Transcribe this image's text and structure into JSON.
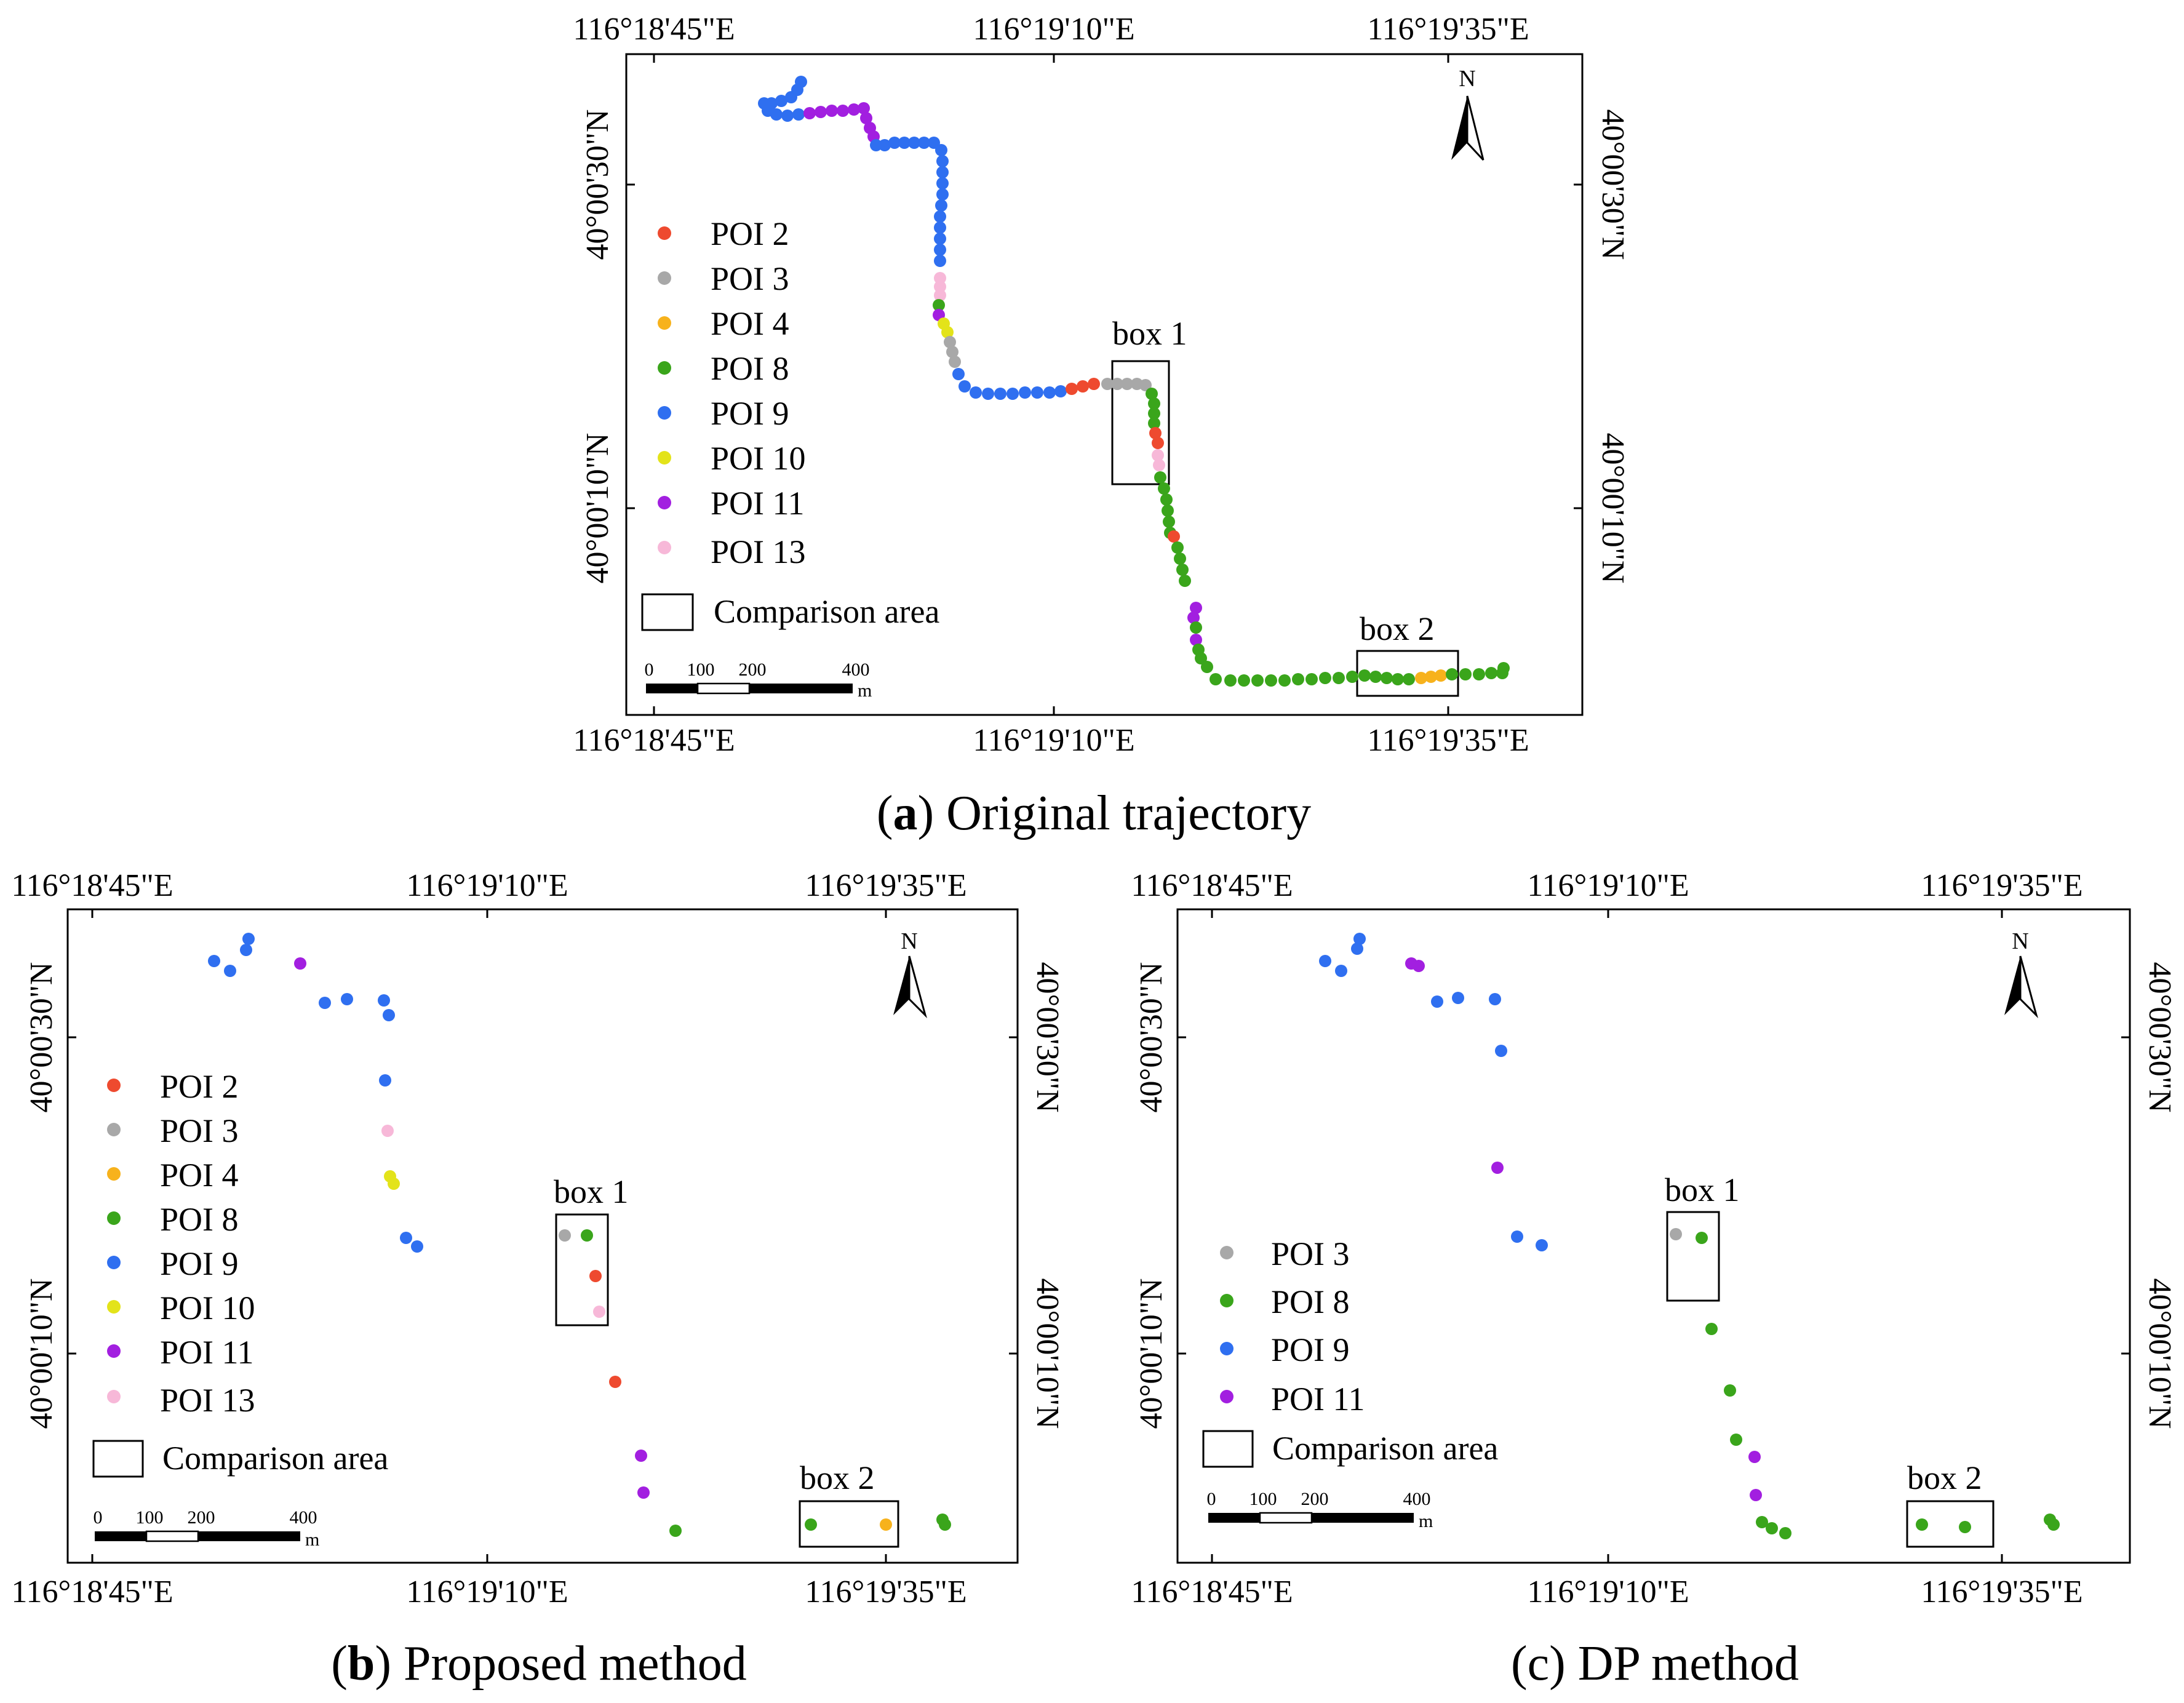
{
  "colors": {
    "poi2": "#ee4a2f",
    "poi3": "#a8a8a8",
    "poi4": "#f7b21c",
    "poi8": "#3aa51b",
    "poi9": "#2f6ff0",
    "poi10": "#e3e31a",
    "poi11": "#a21fe0",
    "poi13": "#f7b8d8"
  },
  "coords": {
    "lon_left": "116°18'45\"E",
    "lon_mid": "116°19'10\"E",
    "lon_right": "116°19'35\"E",
    "lat_top": "40°00'30\"N",
    "lat_bottom": "40°00'10\"N"
  },
  "north_label": "N",
  "scale": {
    "t0": "0",
    "t1": "100",
    "t2": "200",
    "t3": "400",
    "unit": "m"
  },
  "comparison_label": "Comparison area",
  "box1_label": "box 1",
  "box2_label": "box 2",
  "panels": {
    "a": {
      "caption_letter": "a",
      "caption_text": " Original trajectory",
      "legend": [
        {
          "label": "POI 2",
          "color_key": "poi2"
        },
        {
          "label": "POI 3",
          "color_key": "poi3"
        },
        {
          "label": "POI 4",
          "color_key": "poi4"
        },
        {
          "label": "POI 8",
          "color_key": "poi8"
        },
        {
          "label": "POI 9",
          "color_key": "poi9"
        },
        {
          "label": "POI 10",
          "color_key": "poi10"
        },
        {
          "label": "POI 11",
          "color_key": "poi11"
        },
        {
          "label": "POI 13",
          "color_key": "poi13"
        }
      ]
    },
    "b": {
      "caption_letter": "b",
      "caption_text": " Proposed method",
      "legend": [
        {
          "label": "POI 2",
          "color_key": "poi2"
        },
        {
          "label": "POI 3",
          "color_key": "poi3"
        },
        {
          "label": "POI 4",
          "color_key": "poi4"
        },
        {
          "label": "POI 8",
          "color_key": "poi8"
        },
        {
          "label": "POI 9",
          "color_key": "poi9"
        },
        {
          "label": "POI 10",
          "color_key": "poi10"
        },
        {
          "label": "POI 11",
          "color_key": "poi11"
        },
        {
          "label": "POI 13",
          "color_key": "poi13"
        }
      ]
    },
    "c": {
      "caption_letter": "c",
      "caption_text": " DP method",
      "legend": [
        {
          "label": "POI 3",
          "color_key": "poi3"
        },
        {
          "label": "POI 8",
          "color_key": "poi8"
        },
        {
          "label": "POI 9",
          "color_key": "poi9"
        },
        {
          "label": "POI 11",
          "color_key": "poi11"
        }
      ]
    }
  }
}
